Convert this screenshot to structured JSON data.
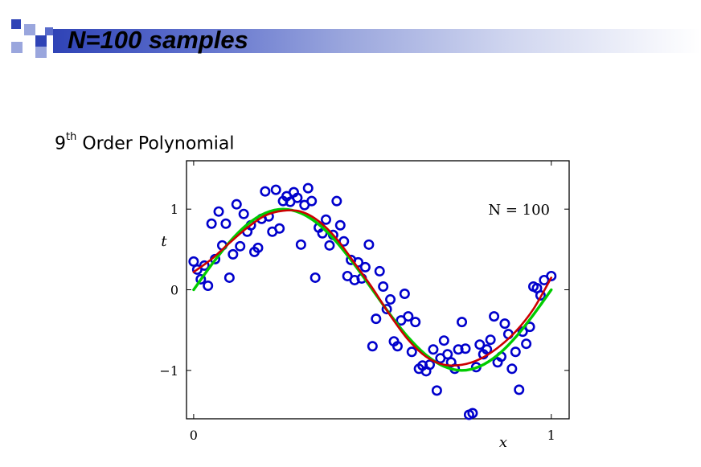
{
  "slide": {
    "title": "N=100 samples",
    "subtitle_base": "9",
    "subtitle_sup": "th",
    "subtitle_rest": " Order Polynomial",
    "accent_color": "#2f43b6",
    "header_square_colors": [
      "#2f43b6",
      "#9aa6dd"
    ]
  },
  "chart_data": {
    "type": "scatter",
    "title": "",
    "xlabel": "x",
    "ylabel": "t",
    "xlim": [
      -0.02,
      1.05
    ],
    "ylim": [
      -1.6,
      1.6
    ],
    "x_ticks": [
      0,
      1
    ],
    "x_tick_labels": [
      "0",
      "1"
    ],
    "y_ticks": [
      1,
      0,
      -1
    ],
    "y_tick_labels": [
      "1",
      "0",
      "−1"
    ],
    "annotation": "N = 100",
    "grid": false,
    "series": [
      {
        "type": "scatter",
        "color": "#0000cc",
        "marker": "open-circle",
        "x": [
          0.0,
          0.01,
          0.02,
          0.03,
          0.04,
          0.05,
          0.06,
          0.07,
          0.08,
          0.09,
          0.1,
          0.11,
          0.12,
          0.13,
          0.14,
          0.15,
          0.16,
          0.17,
          0.18,
          0.19,
          0.2,
          0.21,
          0.22,
          0.23,
          0.24,
          0.25,
          0.26,
          0.27,
          0.28,
          0.29,
          0.3,
          0.31,
          0.32,
          0.33,
          0.34,
          0.35,
          0.36,
          0.37,
          0.38,
          0.39,
          0.4,
          0.41,
          0.42,
          0.43,
          0.44,
          0.45,
          0.46,
          0.47,
          0.48,
          0.49,
          0.5,
          0.51,
          0.52,
          0.53,
          0.54,
          0.55,
          0.56,
          0.57,
          0.58,
          0.59,
          0.6,
          0.61,
          0.62,
          0.63,
          0.64,
          0.65,
          0.66,
          0.67,
          0.68,
          0.69,
          0.7,
          0.71,
          0.72,
          0.73,
          0.74,
          0.75,
          0.76,
          0.77,
          0.78,
          0.79,
          0.8,
          0.81,
          0.82,
          0.83,
          0.84,
          0.85,
          0.86,
          0.87,
          0.88,
          0.89,
          0.9,
          0.91,
          0.92,
          0.93,
          0.94,
          0.95,
          0.96,
          0.97,
          0.98,
          1.0
        ],
        "y": [
          0.35,
          0.25,
          0.13,
          0.3,
          0.05,
          0.82,
          0.38,
          0.97,
          0.55,
          0.82,
          0.15,
          0.44,
          1.06,
          0.54,
          0.94,
          0.72,
          0.8,
          0.47,
          0.52,
          0.88,
          1.22,
          0.91,
          0.72,
          1.24,
          0.76,
          1.1,
          1.16,
          1.09,
          1.21,
          1.14,
          0.56,
          1.05,
          1.26,
          1.1,
          0.15,
          0.77,
          0.7,
          0.87,
          0.55,
          0.68,
          1.1,
          0.8,
          0.6,
          0.17,
          0.37,
          0.12,
          0.34,
          0.14,
          0.28,
          0.56,
          -0.7,
          -0.36,
          0.23,
          0.04,
          -0.24,
          -0.12,
          -0.64,
          -0.7,
          -0.38,
          -0.05,
          -0.33,
          -0.77,
          -0.4,
          -0.98,
          -0.94,
          -1.01,
          -0.93,
          -0.74,
          -1.25,
          -0.85,
          -0.63,
          -0.8,
          -0.9,
          -0.98,
          -0.74,
          -0.4,
          -0.73,
          -1.55,
          -1.53,
          -0.96,
          -0.68,
          -0.8,
          -0.74,
          -0.62,
          -0.33,
          -0.9,
          -0.83,
          -0.42,
          -0.55,
          -0.98,
          -0.77,
          -1.24,
          -0.52,
          -0.67,
          -0.46,
          0.04,
          0.02,
          -0.07,
          0.12,
          0.17
        ]
      },
      {
        "type": "line",
        "color": "#00cc00",
        "x": [
          0.0,
          0.05,
          0.1,
          0.15,
          0.2,
          0.25,
          0.3,
          0.35,
          0.4,
          0.45,
          0.5,
          0.55,
          0.6,
          0.65,
          0.7,
          0.75,
          0.8,
          0.85,
          0.9,
          0.95,
          1.0
        ],
        "y": [
          0.0,
          0.31,
          0.59,
          0.81,
          0.95,
          1.0,
          0.95,
          0.81,
          0.59,
          0.31,
          0.0,
          -0.31,
          -0.59,
          -0.81,
          -0.95,
          -1.0,
          -0.95,
          -0.81,
          -0.59,
          -0.31,
          0.0
        ]
      },
      {
        "type": "line",
        "color": "#cc0000",
        "x": [
          0.0,
          0.05,
          0.1,
          0.15,
          0.2,
          0.25,
          0.3,
          0.35,
          0.4,
          0.45,
          0.5,
          0.55,
          0.6,
          0.65,
          0.7,
          0.75,
          0.8,
          0.85,
          0.9,
          0.95,
          1.0
        ],
        "y": [
          0.22,
          0.38,
          0.58,
          0.77,
          0.92,
          0.98,
          0.97,
          0.85,
          0.63,
          0.33,
          0.02,
          -0.32,
          -0.62,
          -0.83,
          -0.93,
          -0.93,
          -0.86,
          -0.72,
          -0.52,
          -0.24,
          0.15
        ]
      }
    ]
  }
}
